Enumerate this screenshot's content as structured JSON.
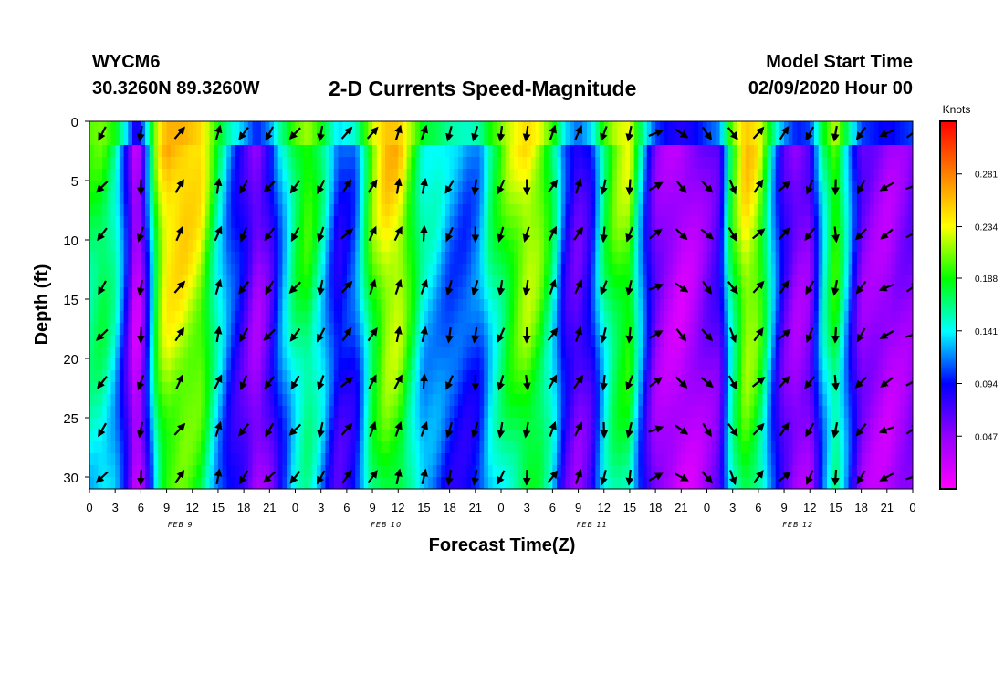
{
  "header": {
    "station_id": "WYCM6",
    "station_location": "30.3260N 89.3260W",
    "title": "2-D Currents Speed-Magnitude",
    "start_label": "Model Start Time",
    "start_value": "02/09/2020 Hour 00"
  },
  "chart_data": {
    "type": "heatmap",
    "title": "2-D Currents Speed-Magnitude",
    "xlabel": "Forecast Time(Z)",
    "ylabel": "Depth (ft)",
    "x_range_hours": [
      0,
      96
    ],
    "y_range_ft": [
      0,
      31
    ],
    "y_inverted": true,
    "x_tick_labels": [
      "0",
      "3",
      "6",
      "9",
      "12",
      "15",
      "18",
      "21",
      "0",
      "3",
      "6",
      "9",
      "12",
      "15",
      "18",
      "21",
      "0",
      "3",
      "6",
      "9",
      "12",
      "15",
      "18",
      "21",
      "0",
      "3",
      "6",
      "9",
      "12",
      "15",
      "18",
      "21",
      "0"
    ],
    "date_labels": [
      {
        "text": "FEB 9",
        "hour": 12
      },
      {
        "text": "FEB 10",
        "hour": 36
      },
      {
        "text": "FEB 11",
        "hour": 60
      },
      {
        "text": "FEB 12",
        "hour": 84
      }
    ],
    "y_ticks": [
      0,
      5,
      10,
      15,
      20,
      25,
      30
    ],
    "colorbar": {
      "unit": "Knots",
      "min": 0.0,
      "max": 0.328,
      "tick_values": [
        0.281,
        0.234,
        0.188,
        0.141,
        0.094,
        0.047
      ],
      "colors": [
        "#ff00ff",
        "#9400ff",
        "#0000ff",
        "#00ffff",
        "#00ff00",
        "#ffff00",
        "#ff8000",
        "#ff0000"
      ]
    },
    "speed_profile_by_hour": {
      "hours": [
        0,
        1.5,
        3,
        4.5,
        5.5,
        6.5,
        8,
        9,
        11,
        13,
        15,
        16.5,
        18,
        19.5,
        21,
        22.5,
        24,
        25.5,
        27,
        29,
        31,
        33,
        34.5,
        36,
        37.5,
        39,
        40.5,
        42,
        44,
        45.5,
        47,
        49,
        51,
        52.5,
        54,
        55.5,
        57,
        58.5,
        60,
        61.5,
        63,
        64.5,
        66,
        67.5,
        69,
        70.5,
        72,
        73.5,
        75,
        76.5,
        78,
        79.5,
        81,
        82.5,
        84,
        85.5,
        87,
        88.5,
        90,
        91.5,
        93,
        94.5,
        96
      ],
      "speeds": [
        0.19,
        0.2,
        0.17,
        0.09,
        0.02,
        0.09,
        0.23,
        0.27,
        0.27,
        0.25,
        0.17,
        0.12,
        0.09,
        0.05,
        0.08,
        0.14,
        0.19,
        0.21,
        0.17,
        0.1,
        0.12,
        0.22,
        0.26,
        0.26,
        0.21,
        0.16,
        0.15,
        0.13,
        0.12,
        0.13,
        0.18,
        0.22,
        0.25,
        0.23,
        0.18,
        0.1,
        0.07,
        0.1,
        0.18,
        0.22,
        0.23,
        0.13,
        0.06,
        0.04,
        0.03,
        0.04,
        0.06,
        0.08,
        0.2,
        0.26,
        0.24,
        0.15,
        0.08,
        0.05,
        0.06,
        0.16,
        0.22,
        0.14,
        0.06,
        0.05,
        0.04,
        0.05,
        0.06
      ]
    },
    "vector_columns_hours": [
      1.5,
      6,
      10.5,
      15,
      18,
      21,
      24,
      27,
      30,
      33,
      36,
      39,
      42,
      45,
      48,
      51,
      54,
      57,
      60,
      63,
      66,
      69,
      72,
      75,
      78,
      81,
      84,
      87,
      90,
      93,
      96
    ],
    "vector_rows_ft": [
      1,
      5.5,
      9.5,
      14,
      18,
      22,
      26,
      30
    ],
    "vector_directions_deg_by_column": [
      220,
      190,
      30,
      20,
      210,
      215,
      220,
      200,
      40,
      30,
      20,
      10,
      200,
      190,
      195,
      185,
      30,
      25,
      190,
      195,
      60,
      130,
      140,
      150,
      40,
      45,
      210,
      180,
      220,
      240,
      60
    ]
  }
}
